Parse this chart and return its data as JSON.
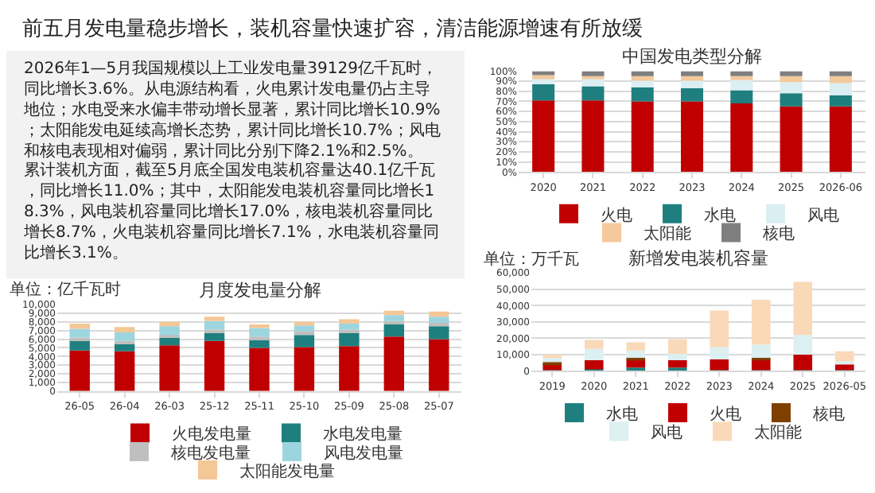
{
  "chart_data": [
    {
      "type": "other",
      "title": "前五月发电量稳步增长，装机容量快速扩容，清洁能源增速有所放缓",
      "annotations": [
        "2026年1—5月我国规模以上工业发电量39129亿千瓦时，同比增长3.6%。从电源结构看，火电累计发电量仍占主导地位；水电受来水偏丰带动增长显著，累计同比增长10.9%；太阳能发电延续高增长态势，累计同比增长10.7%；风电和核电表现相对偏弱，累计同比分别下降2.1%和2.5%。",
        "累计装机方面，截至5月底全国发电装机容量达40.1亿千瓦，同比增长11.0%；其中，太阳能发电装机容量同比增长18.3%，风电装机容量同比增长17.0%，核电装机容量同比增长8.7%，火电装机容量同比增长7.1%，水电装机容量同比增长3.1%。"
      ]
    },
    {
      "type": "bar",
      "stacked": true,
      "title": "月度发电量分解",
      "ylabel": "单位：亿千瓦时",
      "categories": [
        "26-05",
        "26-04",
        "26-03",
        "25-12",
        "25-11",
        "25-10",
        "25-09",
        "25-08",
        "25-07"
      ],
      "series": [
        {
          "name": "火电发电量",
          "color": "#c00000",
          "values": [
            4700,
            4600,
            5300,
            5800,
            5000,
            5100,
            5200,
            6300,
            6000
          ]
        },
        {
          "name": "水电发电量",
          "color": "#1f7f7f",
          "values": [
            1200,
            800,
            900,
            900,
            900,
            1400,
            1600,
            1400,
            1500
          ]
        },
        {
          "name": "核电发电量",
          "color": "#bfbfbf",
          "values": [
            300,
            400,
            300,
            400,
            400,
            400,
            300,
            400,
            400
          ]
        },
        {
          "name": "风电发电量",
          "color": "#9dd5df",
          "values": [
            1000,
            1000,
            1000,
            1000,
            1000,
            700,
            700,
            700,
            700
          ]
        },
        {
          "name": "太阳能发电量",
          "color": "#f4c796",
          "values": [
            600,
            600,
            500,
            500,
            400,
            400,
            500,
            500,
            600
          ]
        }
      ],
      "ylim": [
        0,
        10000
      ],
      "yticks": [
        0,
        {
          "value": 1000,
          "label": "1,000"
        },
        {
          "value": 2000,
          "label": "2,000"
        },
        {
          "value": 3000,
          "label": "3,000"
        },
        {
          "value": 4000,
          "label": "4,000"
        },
        {
          "value": 5000,
          "label": "5,000"
        },
        {
          "value": 6000,
          "label": "6,000"
        },
        {
          "value": 7000,
          "label": "7,000"
        },
        {
          "value": 8000,
          "label": "8,000"
        },
        {
          "value": 9000,
          "label": "9,000"
        },
        {
          "value": 10000,
          "label": "10,000"
        }
      ],
      "grid": "y",
      "legend": "bottom"
    },
    {
      "type": "bar",
      "stacked": true,
      "title": "中国发电类型分解",
      "categories": [
        "2020",
        "2021",
        "2022",
        "2023",
        "2024",
        "2025",
        "2026-06"
      ],
      "series": [
        {
          "name": "火电",
          "color": "#c00000",
          "values": [
            71,
            71,
            70,
            70,
            68,
            65,
            65
          ]
        },
        {
          "name": "水电",
          "color": "#1f7f7f",
          "values": [
            16,
            14,
            14,
            13,
            13,
            13,
            11
          ]
        },
        {
          "name": "风电",
          "color": "#dbeef2",
          "values": [
            6,
            8,
            8,
            9,
            10,
            11,
            12
          ]
        },
        {
          "name": "太阳能",
          "color": "#f4c99c",
          "values": [
            3,
            2,
            3,
            3,
            4,
            6,
            7
          ]
        },
        {
          "name": "核电",
          "color": "#7f7f7f",
          "values": [
            4,
            5,
            5,
            5,
            5,
            5,
            5
          ]
        }
      ],
      "ylim": [
        0,
        100
      ],
      "yticks": [
        {
          "value": 0,
          "label": "0%"
        },
        {
          "value": 10,
          "label": "10%"
        },
        {
          "value": 20,
          "label": "20%"
        },
        {
          "value": 30,
          "label": "30%"
        },
        {
          "value": 40,
          "label": "40%"
        },
        {
          "value": 50,
          "label": "50%"
        },
        {
          "value": 60,
          "label": "60%"
        },
        {
          "value": 70,
          "label": "70%"
        },
        {
          "value": 80,
          "label": "80%"
        },
        {
          "value": 90,
          "label": "90%"
        },
        {
          "value": 100,
          "label": "100%"
        }
      ],
      "grid": "y",
      "legend": "bottom"
    },
    {
      "type": "bar",
      "stacked": true,
      "title": "新增发电装机容量",
      "ylabel": "单位：万千瓦",
      "categories": [
        "2019",
        "2020",
        "2021",
        "2022",
        "2023",
        "2024",
        "2025",
        "2026-05"
      ],
      "series": [
        {
          "name": "水电",
          "color": "#1f7f7f",
          "values": [
            500,
            1000,
            2000,
            2000,
            500,
            500,
            500,
            500
          ]
        },
        {
          "name": "火电",
          "color": "#c00000",
          "values": [
            4000,
            5500,
            5000,
            4500,
            6500,
            6500,
            9500,
            3500
          ]
        },
        {
          "name": "核电",
          "color": "#7f3f00",
          "values": [
            1000,
            null,
            1000,
            null,
            null,
            1000,
            null,
            null
          ]
        },
        {
          "name": "风电",
          "color": "#dceff1",
          "values": [
            2500,
            7000,
            4500,
            4000,
            7500,
            8000,
            12000,
            2000
          ]
        },
        {
          "name": "太阳能",
          "color": "#f9d9b8",
          "values": [
            2000,
            5500,
            5000,
            9000,
            22500,
            27500,
            32500,
            6000
          ]
        }
      ],
      "ylim": [
        0,
        60000
      ],
      "yticks": [
        0,
        {
          "value": 10000,
          "label": "10,000"
        },
        {
          "value": 20000,
          "label": "20,000"
        },
        {
          "value": 30000,
          "label": "30,000"
        },
        {
          "value": 40000,
          "label": "40,000"
        },
        {
          "value": 50000,
          "label": "50,000"
        },
        {
          "value": 60000,
          "label": "60,000"
        }
      ],
      "grid": "y",
      "legend": "bottom"
    }
  ]
}
